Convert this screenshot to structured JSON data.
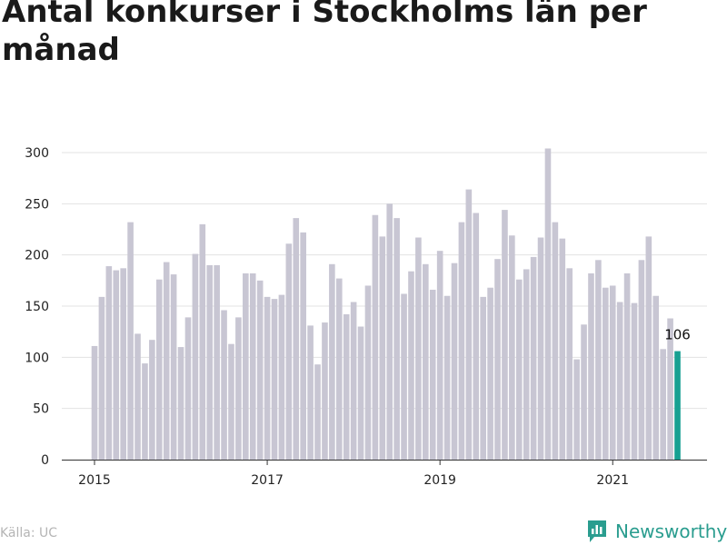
{
  "title": "Antal konkurser i Stockholms län per månad",
  "source": "Källa: UC",
  "brand": {
    "name": "Newsworthy",
    "icon": "newsworthy-logo-icon",
    "color": "#2a9d8f"
  },
  "colors": {
    "bar": "#c8c6d3",
    "highlight": "#17a092",
    "axis": "#333333",
    "grid": "#e3e3e3"
  },
  "chart_data": {
    "type": "bar",
    "title": "Antal konkurser i Stockholms län per månad",
    "xlabel": "",
    "ylabel": "",
    "ylim": [
      0,
      300
    ],
    "y_ticks": [
      0,
      50,
      100,
      150,
      200,
      250,
      300
    ],
    "x_tick_labels": [
      "2015",
      "2017",
      "2019",
      "2021"
    ],
    "grid": true,
    "start": "2015-01",
    "values": [
      111,
      159,
      189,
      185,
      187,
      232,
      123,
      94,
      117,
      176,
      193,
      181,
      110,
      139,
      201,
      230,
      190,
      190,
      146,
      113,
      139,
      182,
      182,
      175,
      159,
      157,
      161,
      211,
      236,
      222,
      131,
      93,
      134,
      191,
      177,
      142,
      154,
      130,
      170,
      239,
      218,
      250,
      236,
      162,
      184,
      217,
      191,
      166,
      204,
      160,
      192,
      232,
      264,
      241,
      159,
      168,
      196,
      244,
      219,
      176,
      186,
      198,
      217,
      304,
      232,
      216,
      187,
      98,
      132,
      182,
      195,
      168,
      170,
      154,
      182,
      153,
      195,
      218,
      160,
      108,
      138,
      106
    ],
    "highlight_label": "106"
  }
}
